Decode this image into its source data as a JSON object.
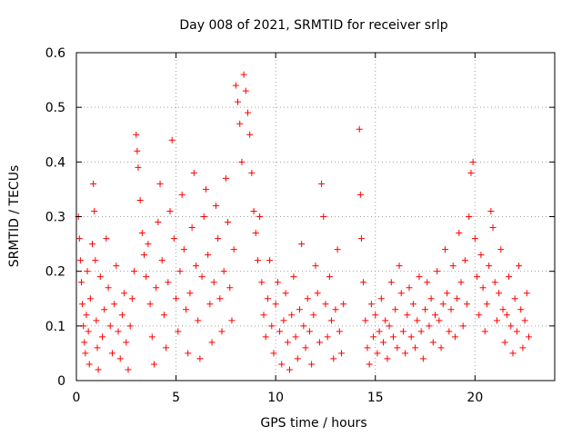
{
  "chart_data": {
    "type": "scatter",
    "title": "Day 008 of 2021, SRMTID for receiver srlp",
    "xlabel": "GPS time / hours",
    "ylabel": "SRMTID / TECUs",
    "xlim": [
      0,
      24
    ],
    "ylim": [
      0,
      0.6
    ],
    "xticks": [
      0,
      5,
      10,
      15,
      20
    ],
    "xtick_labels": [
      "0",
      "5",
      "10",
      "15",
      "20"
    ],
    "yticks": [
      0,
      0.1,
      0.2,
      0.3,
      0.4,
      0.5,
      0.6
    ],
    "ytick_labels": [
      "0",
      "0.1",
      "0.2",
      "0.3",
      "0.4",
      "0.5",
      "0.6"
    ],
    "grid": true,
    "marker": "+",
    "color": "#ff0000",
    "series": [
      {
        "name": "SRMTID",
        "points": [
          [
            0.1,
            0.3
          ],
          [
            0.15,
            0.26
          ],
          [
            0.2,
            0.22
          ],
          [
            0.25,
            0.18
          ],
          [
            0.3,
            0.14
          ],
          [
            0.35,
            0.1
          ],
          [
            0.4,
            0.07
          ],
          [
            0.45,
            0.05
          ],
          [
            0.5,
            0.12
          ],
          [
            0.55,
            0.2
          ],
          [
            0.6,
            0.09
          ],
          [
            0.65,
            0.03
          ],
          [
            0.7,
            0.15
          ],
          [
            0.8,
            0.25
          ],
          [
            0.85,
            0.36
          ],
          [
            0.9,
            0.31
          ],
          [
            0.95,
            0.22
          ],
          [
            1.0,
            0.11
          ],
          [
            1.05,
            0.06
          ],
          [
            1.1,
            0.02
          ],
          [
            1.2,
            0.19
          ],
          [
            1.3,
            0.08
          ],
          [
            1.4,
            0.13
          ],
          [
            1.5,
            0.26
          ],
          [
            1.6,
            0.17
          ],
          [
            1.7,
            0.1
          ],
          [
            1.8,
            0.05
          ],
          [
            1.9,
            0.14
          ],
          [
            2.0,
            0.21
          ],
          [
            2.1,
            0.09
          ],
          [
            2.2,
            0.04
          ],
          [
            2.3,
            0.12
          ],
          [
            2.4,
            0.16
          ],
          [
            2.5,
            0.07
          ],
          [
            2.6,
            0.02
          ],
          [
            2.7,
            0.1
          ],
          [
            2.8,
            0.15
          ],
          [
            2.9,
            0.2
          ],
          [
            3.0,
            0.45
          ],
          [
            3.05,
            0.42
          ],
          [
            3.1,
            0.39
          ],
          [
            3.2,
            0.33
          ],
          [
            3.3,
            0.27
          ],
          [
            3.4,
            0.23
          ],
          [
            3.5,
            0.19
          ],
          [
            3.6,
            0.25
          ],
          [
            3.7,
            0.14
          ],
          [
            3.8,
            0.08
          ],
          [
            3.9,
            0.03
          ],
          [
            4.0,
            0.17
          ],
          [
            4.1,
            0.29
          ],
          [
            4.2,
            0.36
          ],
          [
            4.3,
            0.22
          ],
          [
            4.4,
            0.12
          ],
          [
            4.5,
            0.06
          ],
          [
            4.6,
            0.18
          ],
          [
            4.7,
            0.31
          ],
          [
            4.8,
            0.44
          ],
          [
            4.9,
            0.26
          ],
          [
            5.0,
            0.15
          ],
          [
            5.1,
            0.09
          ],
          [
            5.2,
            0.2
          ],
          [
            5.3,
            0.34
          ],
          [
            5.4,
            0.24
          ],
          [
            5.5,
            0.13
          ],
          [
            5.6,
            0.05
          ],
          [
            5.7,
            0.16
          ],
          [
            5.8,
            0.28
          ],
          [
            5.9,
            0.38
          ],
          [
            6.0,
            0.21
          ],
          [
            6.1,
            0.11
          ],
          [
            6.2,
            0.04
          ],
          [
            6.3,
            0.19
          ],
          [
            6.4,
            0.3
          ],
          [
            6.5,
            0.35
          ],
          [
            6.6,
            0.23
          ],
          [
            6.7,
            0.14
          ],
          [
            6.8,
            0.07
          ],
          [
            6.9,
            0.18
          ],
          [
            7.0,
            0.32
          ],
          [
            7.1,
            0.26
          ],
          [
            7.2,
            0.15
          ],
          [
            7.3,
            0.09
          ],
          [
            7.4,
            0.2
          ],
          [
            7.5,
            0.37
          ],
          [
            7.6,
            0.29
          ],
          [
            7.7,
            0.17
          ],
          [
            7.8,
            0.11
          ],
          [
            7.9,
            0.24
          ],
          [
            8.0,
            0.54
          ],
          [
            8.1,
            0.51
          ],
          [
            8.2,
            0.47
          ],
          [
            8.3,
            0.4
          ],
          [
            8.4,
            0.56
          ],
          [
            8.5,
            0.53
          ],
          [
            8.6,
            0.49
          ],
          [
            8.7,
            0.45
          ],
          [
            8.8,
            0.38
          ],
          [
            8.9,
            0.31
          ],
          [
            9.0,
            0.27
          ],
          [
            9.1,
            0.22
          ],
          [
            9.2,
            0.3
          ],
          [
            9.3,
            0.18
          ],
          [
            9.4,
            0.12
          ],
          [
            9.5,
            0.08
          ],
          [
            9.6,
            0.15
          ],
          [
            9.7,
            0.22
          ],
          [
            9.8,
            0.1
          ],
          [
            9.9,
            0.05
          ],
          [
            10.0,
            0.14
          ],
          [
            10.1,
            0.18
          ],
          [
            10.2,
            0.09
          ],
          [
            10.3,
            0.03
          ],
          [
            10.4,
            0.11
          ],
          [
            10.5,
            0.16
          ],
          [
            10.6,
            0.07
          ],
          [
            10.7,
            0.02
          ],
          [
            10.8,
            0.12
          ],
          [
            10.9,
            0.19
          ],
          [
            11.0,
            0.08
          ],
          [
            11.1,
            0.04
          ],
          [
            11.2,
            0.13
          ],
          [
            11.3,
            0.25
          ],
          [
            11.4,
            0.1
          ],
          [
            11.5,
            0.06
          ],
          [
            11.6,
            0.15
          ],
          [
            11.7,
            0.09
          ],
          [
            11.8,
            0.03
          ],
          [
            11.9,
            0.12
          ],
          [
            12.0,
            0.21
          ],
          [
            12.1,
            0.16
          ],
          [
            12.2,
            0.07
          ],
          [
            12.3,
            0.36
          ],
          [
            12.4,
            0.3
          ],
          [
            12.5,
            0.14
          ],
          [
            12.6,
            0.08
          ],
          [
            12.7,
            0.19
          ],
          [
            12.8,
            0.11
          ],
          [
            12.9,
            0.04
          ],
          [
            13.0,
            0.13
          ],
          [
            13.1,
            0.24
          ],
          [
            13.2,
            0.09
          ],
          [
            13.3,
            0.05
          ],
          [
            13.4,
            0.14
          ],
          [
            14.2,
            0.46
          ],
          [
            14.25,
            0.34
          ],
          [
            14.3,
            0.26
          ],
          [
            14.4,
            0.18
          ],
          [
            14.5,
            0.11
          ],
          [
            14.6,
            0.06
          ],
          [
            14.7,
            0.03
          ],
          [
            14.8,
            0.14
          ],
          [
            14.9,
            0.08
          ],
          [
            15.0,
            0.12
          ],
          [
            15.1,
            0.05
          ],
          [
            15.2,
            0.09
          ],
          [
            15.3,
            0.15
          ],
          [
            15.4,
            0.07
          ],
          [
            15.5,
            0.11
          ],
          [
            15.6,
            0.04
          ],
          [
            15.7,
            0.1
          ],
          [
            15.8,
            0.18
          ],
          [
            15.9,
            0.08
          ],
          [
            16.0,
            0.13
          ],
          [
            16.1,
            0.06
          ],
          [
            16.2,
            0.21
          ],
          [
            16.3,
            0.16
          ],
          [
            16.4,
            0.09
          ],
          [
            16.5,
            0.05
          ],
          [
            16.6,
            0.12
          ],
          [
            16.7,
            0.17
          ],
          [
            16.8,
            0.08
          ],
          [
            16.9,
            0.14
          ],
          [
            17.0,
            0.06
          ],
          [
            17.1,
            0.11
          ],
          [
            17.2,
            0.19
          ],
          [
            17.3,
            0.09
          ],
          [
            17.4,
            0.04
          ],
          [
            17.5,
            0.13
          ],
          [
            17.6,
            0.18
          ],
          [
            17.7,
            0.1
          ],
          [
            17.8,
            0.15
          ],
          [
            17.9,
            0.07
          ],
          [
            18.0,
            0.12
          ],
          [
            18.1,
            0.2
          ],
          [
            18.2,
            0.11
          ],
          [
            18.3,
            0.06
          ],
          [
            18.4,
            0.14
          ],
          [
            18.5,
            0.24
          ],
          [
            18.6,
            0.16
          ],
          [
            18.7,
            0.09
          ],
          [
            18.8,
            0.13
          ],
          [
            18.9,
            0.21
          ],
          [
            19.0,
            0.08
          ],
          [
            19.1,
            0.15
          ],
          [
            19.2,
            0.27
          ],
          [
            19.3,
            0.18
          ],
          [
            19.4,
            0.1
          ],
          [
            19.5,
            0.22
          ],
          [
            19.6,
            0.14
          ],
          [
            19.7,
            0.3
          ],
          [
            19.8,
            0.38
          ],
          [
            19.9,
            0.4
          ],
          [
            20.0,
            0.26
          ],
          [
            20.1,
            0.19
          ],
          [
            20.2,
            0.12
          ],
          [
            20.3,
            0.23
          ],
          [
            20.4,
            0.17
          ],
          [
            20.5,
            0.09
          ],
          [
            20.6,
            0.14
          ],
          [
            20.7,
            0.21
          ],
          [
            20.8,
            0.31
          ],
          [
            20.9,
            0.28
          ],
          [
            21.0,
            0.18
          ],
          [
            21.1,
            0.11
          ],
          [
            21.2,
            0.16
          ],
          [
            21.3,
            0.24
          ],
          [
            21.4,
            0.13
          ],
          [
            21.5,
            0.07
          ],
          [
            21.6,
            0.12
          ],
          [
            21.7,
            0.19
          ],
          [
            21.8,
            0.1
          ],
          [
            21.9,
            0.05
          ],
          [
            22.0,
            0.15
          ],
          [
            22.1,
            0.09
          ],
          [
            22.2,
            0.21
          ],
          [
            22.3,
            0.13
          ],
          [
            22.4,
            0.06
          ],
          [
            22.5,
            0.11
          ],
          [
            22.6,
            0.16
          ],
          [
            22.7,
            0.08
          ]
        ]
      }
    ]
  }
}
